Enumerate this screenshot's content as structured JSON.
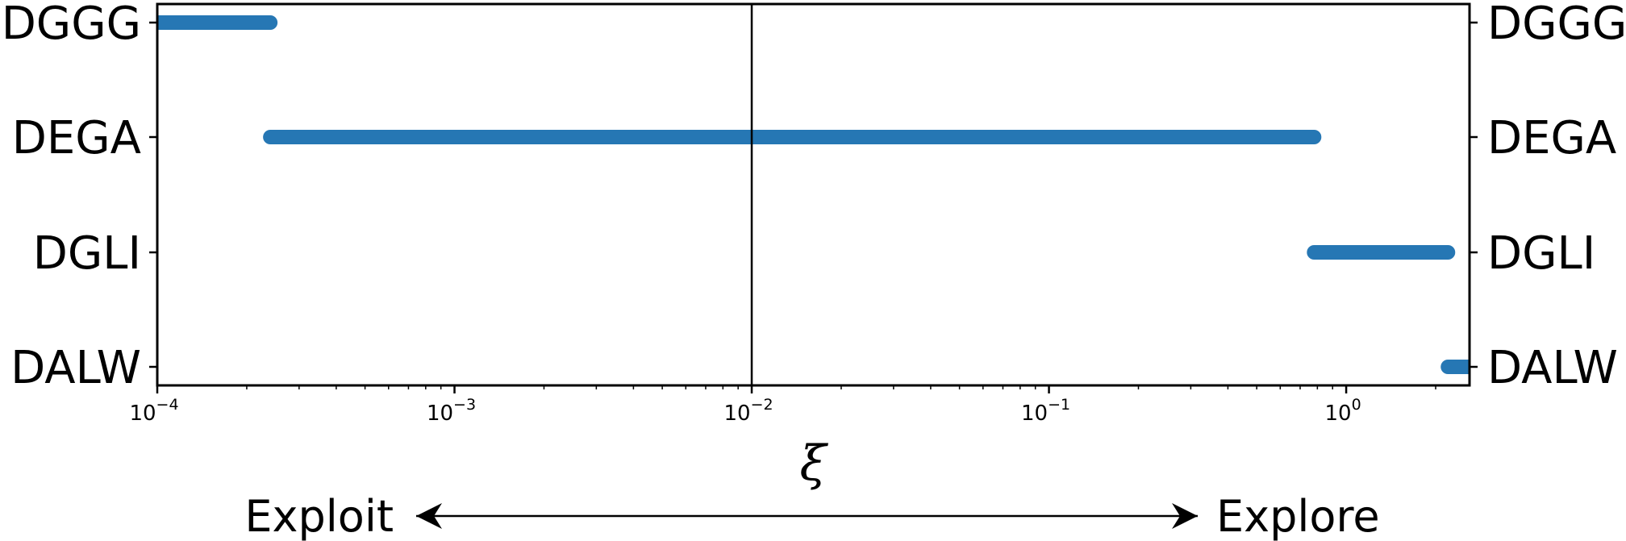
{
  "chart_data": {
    "type": "range-bar",
    "categories": [
      "DGGG",
      "DEGA",
      "DGLI",
      "DALW"
    ],
    "ranges": [
      {
        "category": "DGGG",
        "start": 0.0001,
        "end": 0.00024
      },
      {
        "category": "DEGA",
        "start": 0.00024,
        "end": 0.78
      },
      {
        "category": "DGLI",
        "start": 0.78,
        "end": 2.2
      },
      {
        "category": "DALW",
        "start": 2.2,
        "end": 2.6
      }
    ],
    "x_scale": "log",
    "xlim": [
      0.0001,
      2.6
    ],
    "xticks": [
      {
        "value": 0.0001,
        "base": "10",
        "exp": "−4"
      },
      {
        "value": 0.001,
        "base": "10",
        "exp": "−3"
      },
      {
        "value": 0.01,
        "base": "10",
        "exp": "−2"
      },
      {
        "value": 0.1,
        "base": "10",
        "exp": "−1"
      },
      {
        "value": 1,
        "base": "10",
        "exp": "0"
      }
    ],
    "vline_x": 0.01,
    "xlabel": "ξ",
    "direction_left": "Exploit",
    "direction_right": "Explore",
    "series_color": "#2677b4",
    "grid": false
  }
}
